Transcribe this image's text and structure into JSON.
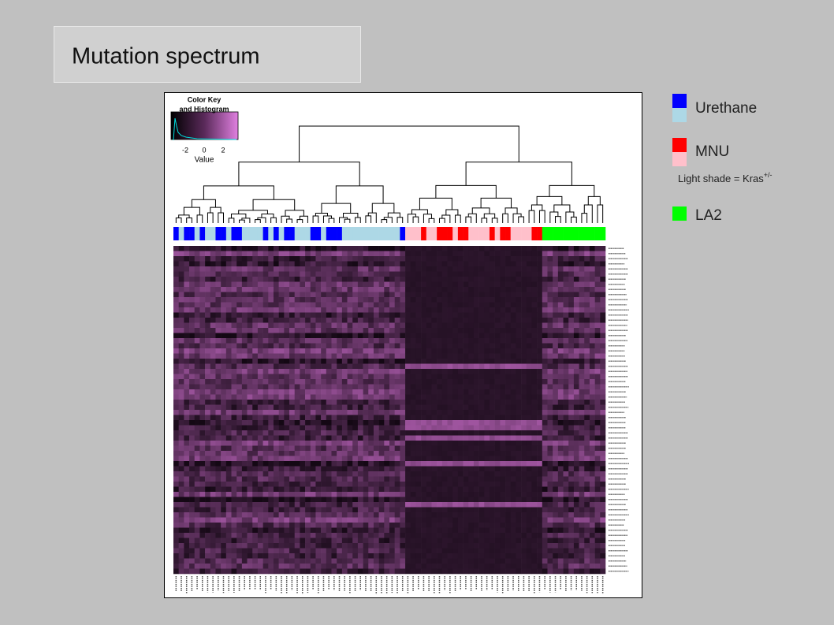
{
  "title": "Mutation spectrum",
  "color_key": {
    "title": [
      "Color Key",
      "and Histogram"
    ],
    "ticks": [
      -2,
      0,
      2
    ],
    "xlabel": "Value"
  },
  "legend": {
    "items": [
      {
        "label": "Urethane",
        "colors": [
          "#0000ff",
          "#add8e6"
        ]
      },
      {
        "label": "MNU",
        "colors": [
          "#ff0000",
          "#ffc0cb"
        ]
      },
      {
        "label": "LA2",
        "colors": [
          "#00ff00"
        ]
      }
    ],
    "note": "Light shade = Kras",
    "note_sup": "+/-"
  }
}
